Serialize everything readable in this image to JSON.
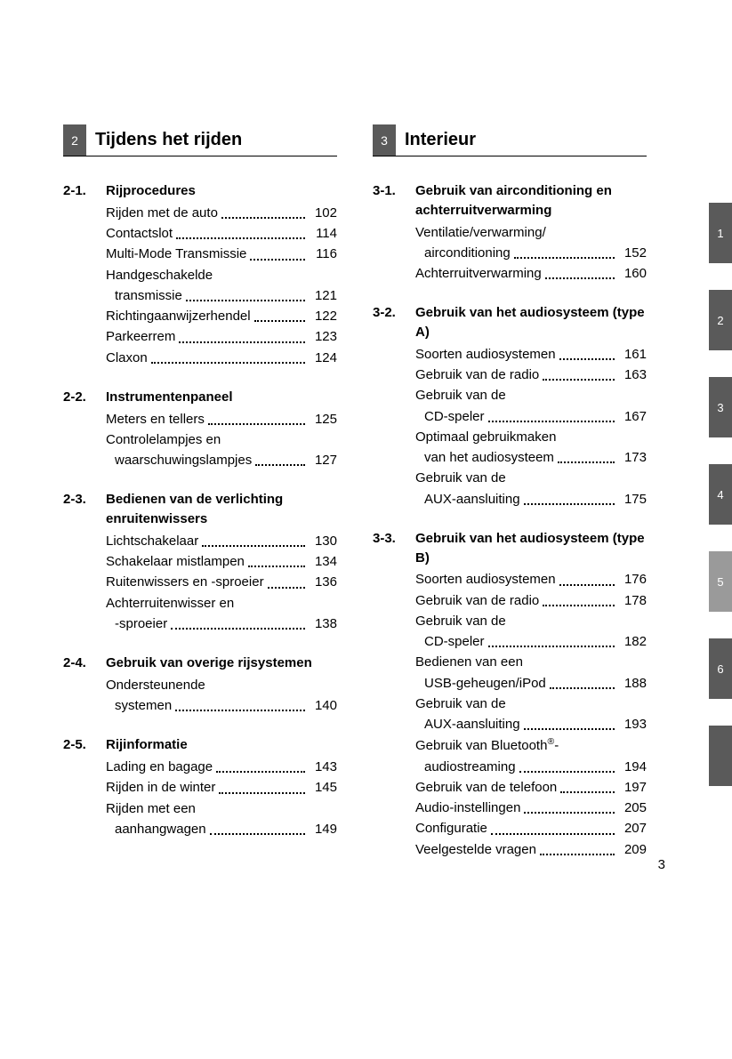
{
  "pageNumber": "3",
  "sideTabs": [
    {
      "label": "1",
      "bg": "#5a5a5a"
    },
    {
      "label": "2",
      "bg": "#5a5a5a"
    },
    {
      "label": "3",
      "bg": "#5a5a5a"
    },
    {
      "label": "4",
      "bg": "#5a5a5a"
    },
    {
      "label": "5",
      "bg": "#9a9a9a"
    },
    {
      "label": "6",
      "bg": "#5a5a5a"
    },
    {
      "label": "",
      "bg": "#5a5a5a"
    }
  ],
  "columns": [
    {
      "chapterNum": "2",
      "chapterTitle": "Tijdens het rijden",
      "sections": [
        {
          "num": "2-1.",
          "title": "Rijprocedures",
          "entries": [
            {
              "label": [
                "Rijden met de auto"
              ],
              "page": "102"
            },
            {
              "label": [
                "Contactslot"
              ],
              "page": "114"
            },
            {
              "label": [
                "Multi-Mode Transmissie"
              ],
              "page": "116"
            },
            {
              "label": [
                "Handgeschakelde",
                "transmissie"
              ],
              "page": "121"
            },
            {
              "label": [
                "Richtingaanwijzerhendel"
              ],
              "page": "122"
            },
            {
              "label": [
                "Parkeerrem"
              ],
              "page": "123"
            },
            {
              "label": [
                "Claxon"
              ],
              "page": "124"
            }
          ]
        },
        {
          "num": "2-2.",
          "title": "Instrumentenpaneel",
          "entries": [
            {
              "label": [
                "Meters en tellers"
              ],
              "page": "125"
            },
            {
              "label": [
                "Controlelampjes en",
                "waarschuwingslampjes"
              ],
              "page": "127"
            }
          ]
        },
        {
          "num": "2-3.",
          "title": "Bedienen van de verlichting enruitenwissers",
          "entries": [
            {
              "label": [
                "Lichtschakelaar"
              ],
              "page": "130"
            },
            {
              "label": [
                "Schakelaar mistlampen"
              ],
              "page": "134"
            },
            {
              "label": [
                "Ruitenwissers en -sproeier"
              ],
              "page": "136"
            },
            {
              "label": [
                "Achterruitenwisser en",
                "-sproeier"
              ],
              "page": "138"
            }
          ]
        },
        {
          "num": "2-4.",
          "title": "Gebruik van overige rijsystemen",
          "entries": [
            {
              "label": [
                "Ondersteunende",
                "systemen"
              ],
              "page": "140"
            }
          ]
        },
        {
          "num": "2-5.",
          "title": "Rijinformatie",
          "entries": [
            {
              "label": [
                "Lading en bagage"
              ],
              "page": "143"
            },
            {
              "label": [
                "Rijden in de winter"
              ],
              "page": "145"
            },
            {
              "label": [
                "Rijden met een",
                "aanhangwagen"
              ],
              "page": "149"
            }
          ]
        }
      ]
    },
    {
      "chapterNum": "3",
      "chapterTitle": "Interieur",
      "sections": [
        {
          "num": "3-1.",
          "title": "Gebruik van airconditioning en achterruitverwarming",
          "entries": [
            {
              "label": [
                "Ventilatie/verwarming/",
                "airconditioning"
              ],
              "page": "152"
            },
            {
              "label": [
                "Achterruitverwarming"
              ],
              "page": "160"
            }
          ]
        },
        {
          "num": "3-2.",
          "title": "Gebruik van het audiosysteem (type A)",
          "entries": [
            {
              "label": [
                "Soorten audiosystemen"
              ],
              "page": "161"
            },
            {
              "label": [
                "Gebruik van de radio"
              ],
              "page": "163"
            },
            {
              "label": [
                "Gebruik van de",
                "CD-speler"
              ],
              "page": "167"
            },
            {
              "label": [
                "Optimaal gebruikmaken",
                "van het audiosysteem"
              ],
              "page": "173"
            },
            {
              "label": [
                "Gebruik van de",
                "AUX-aansluiting"
              ],
              "page": "175"
            }
          ]
        },
        {
          "num": "3-3.",
          "title": "Gebruik van het audiosysteem (type B)",
          "entries": [
            {
              "label": [
                "Soorten audiosystemen"
              ],
              "page": "176"
            },
            {
              "label": [
                "Gebruik van de radio"
              ],
              "page": "178"
            },
            {
              "label": [
                "Gebruik van de",
                "CD-speler"
              ],
              "page": "182"
            },
            {
              "label": [
                "Bedienen van een",
                "USB-geheugen/iPod"
              ],
              "page": "188"
            },
            {
              "label": [
                "Gebruik van de",
                "AUX-aansluiting"
              ],
              "page": "193"
            },
            {
              "label": [
                "Gebruik van Bluetooth<sup>®</sup>-",
                "audiostreaming"
              ],
              "page": "194"
            },
            {
              "label": [
                "Gebruik van de telefoon"
              ],
              "page": "197"
            },
            {
              "label": [
                "Audio-instellingen"
              ],
              "page": "205"
            },
            {
              "label": [
                "Configuratie"
              ],
              "page": "207"
            },
            {
              "label": [
                "Veelgestelde vragen"
              ],
              "page": "209"
            }
          ]
        }
      ]
    }
  ]
}
